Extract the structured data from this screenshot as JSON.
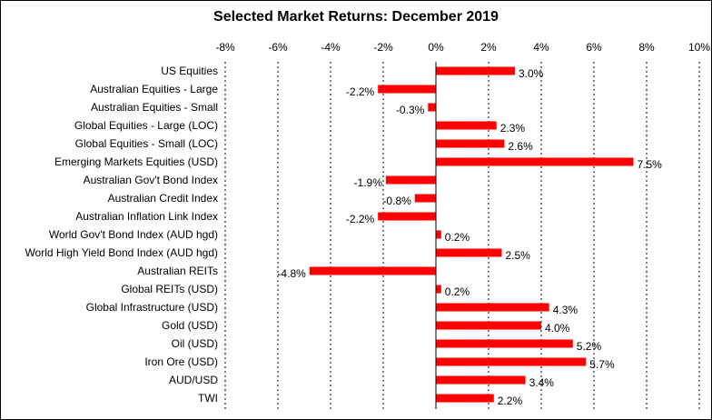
{
  "chart_data": {
    "type": "bar",
    "orientation": "horizontal",
    "title": "Selected Market Returns: December 2019",
    "xlabel": "",
    "ylabel": "",
    "xlim": [
      -8,
      10
    ],
    "ticks": [
      -8,
      -6,
      -4,
      -2,
      0,
      2,
      4,
      6,
      8,
      10
    ],
    "tick_labels": [
      "-8%",
      "-6%",
      "-4%",
      "-2%",
      "0%",
      "2%",
      "4%",
      "6%",
      "8%",
      "10%"
    ],
    "axis_position": "top",
    "grid": true,
    "grid_style": "dashed",
    "bar_color": "#ff0000",
    "categories": [
      "US Equities",
      "Australian Equities - Large",
      "Australian Equities - Small",
      "Global Equities - Large (LOC)",
      "Global Equities - Small (LOC)",
      "Emerging Markets Equities (USD)",
      "Australian Gov't Bond Index",
      "Australian Credit Index",
      "Australian Inflation Link Index",
      "World Gov't Bond Index (AUD hgd)",
      "World High Yield Bond Index (AUD hgd)",
      "Australian REITs",
      "Global REITs (USD)",
      "Global Infrastructure (USD)",
      "Gold (USD)",
      "Oil (USD)",
      "Iron Ore (USD)",
      "AUD/USD",
      "TWI"
    ],
    "values": [
      3.0,
      -2.2,
      -0.3,
      2.3,
      2.6,
      7.5,
      -1.9,
      -0.8,
      -2.2,
      0.2,
      2.5,
      -4.8,
      0.2,
      4.3,
      4.0,
      5.2,
      5.7,
      3.4,
      2.2
    ],
    "data_labels": [
      "3.0%",
      "-2.2%",
      "-0.3%",
      "2.3%",
      "2.6%",
      "7.5%",
      "-1.9%",
      "-0.8%",
      "-2.2%",
      "0.2%",
      "2.5%",
      "-4.8%",
      "0.2%",
      "4.3%",
      "4.0%",
      "5.2%",
      "5.7%",
      "3.4%",
      "2.2%"
    ]
  }
}
